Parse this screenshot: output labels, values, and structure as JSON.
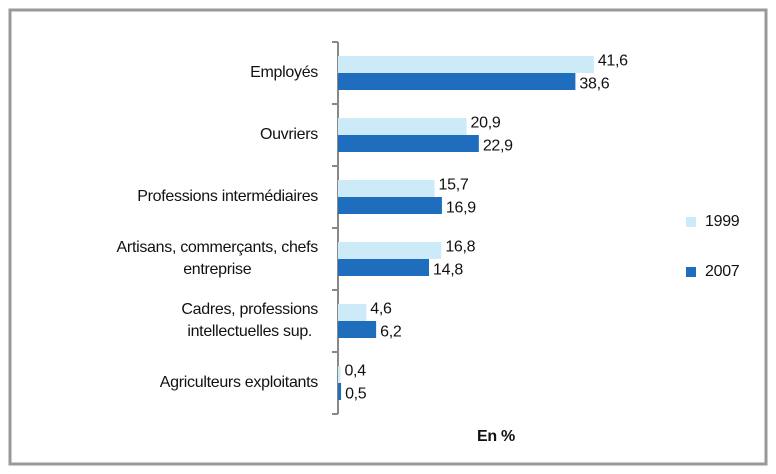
{
  "chart_data": {
    "type": "bar",
    "orientation": "horizontal",
    "xlabel": "En %",
    "categories": [
      "Employés",
      "Ouvriers",
      "Professions intermédiaires",
      "Artisans, commerçants, chefs entreprise",
      "Cadres, professions intellectuelles sup.",
      "Agriculteurs exploitants"
    ],
    "series": [
      {
        "name": "1999",
        "color": "#cdeaf9",
        "values": [
          41.6,
          20.9,
          15.7,
          16.8,
          4.6,
          0.4
        ],
        "value_labels": [
          "41,6",
          "20,9",
          "15,7",
          "16,8",
          "4,6",
          "0,4"
        ]
      },
      {
        "name": "2007",
        "color": "#1f6dbd",
        "values": [
          38.6,
          22.9,
          16.9,
          14.8,
          6.2,
          0.5
        ],
        "value_labels": [
          "38,6",
          "22,9",
          "16,9",
          "14,8",
          "6,2",
          "0,5"
        ]
      }
    ],
    "legend": "right"
  }
}
